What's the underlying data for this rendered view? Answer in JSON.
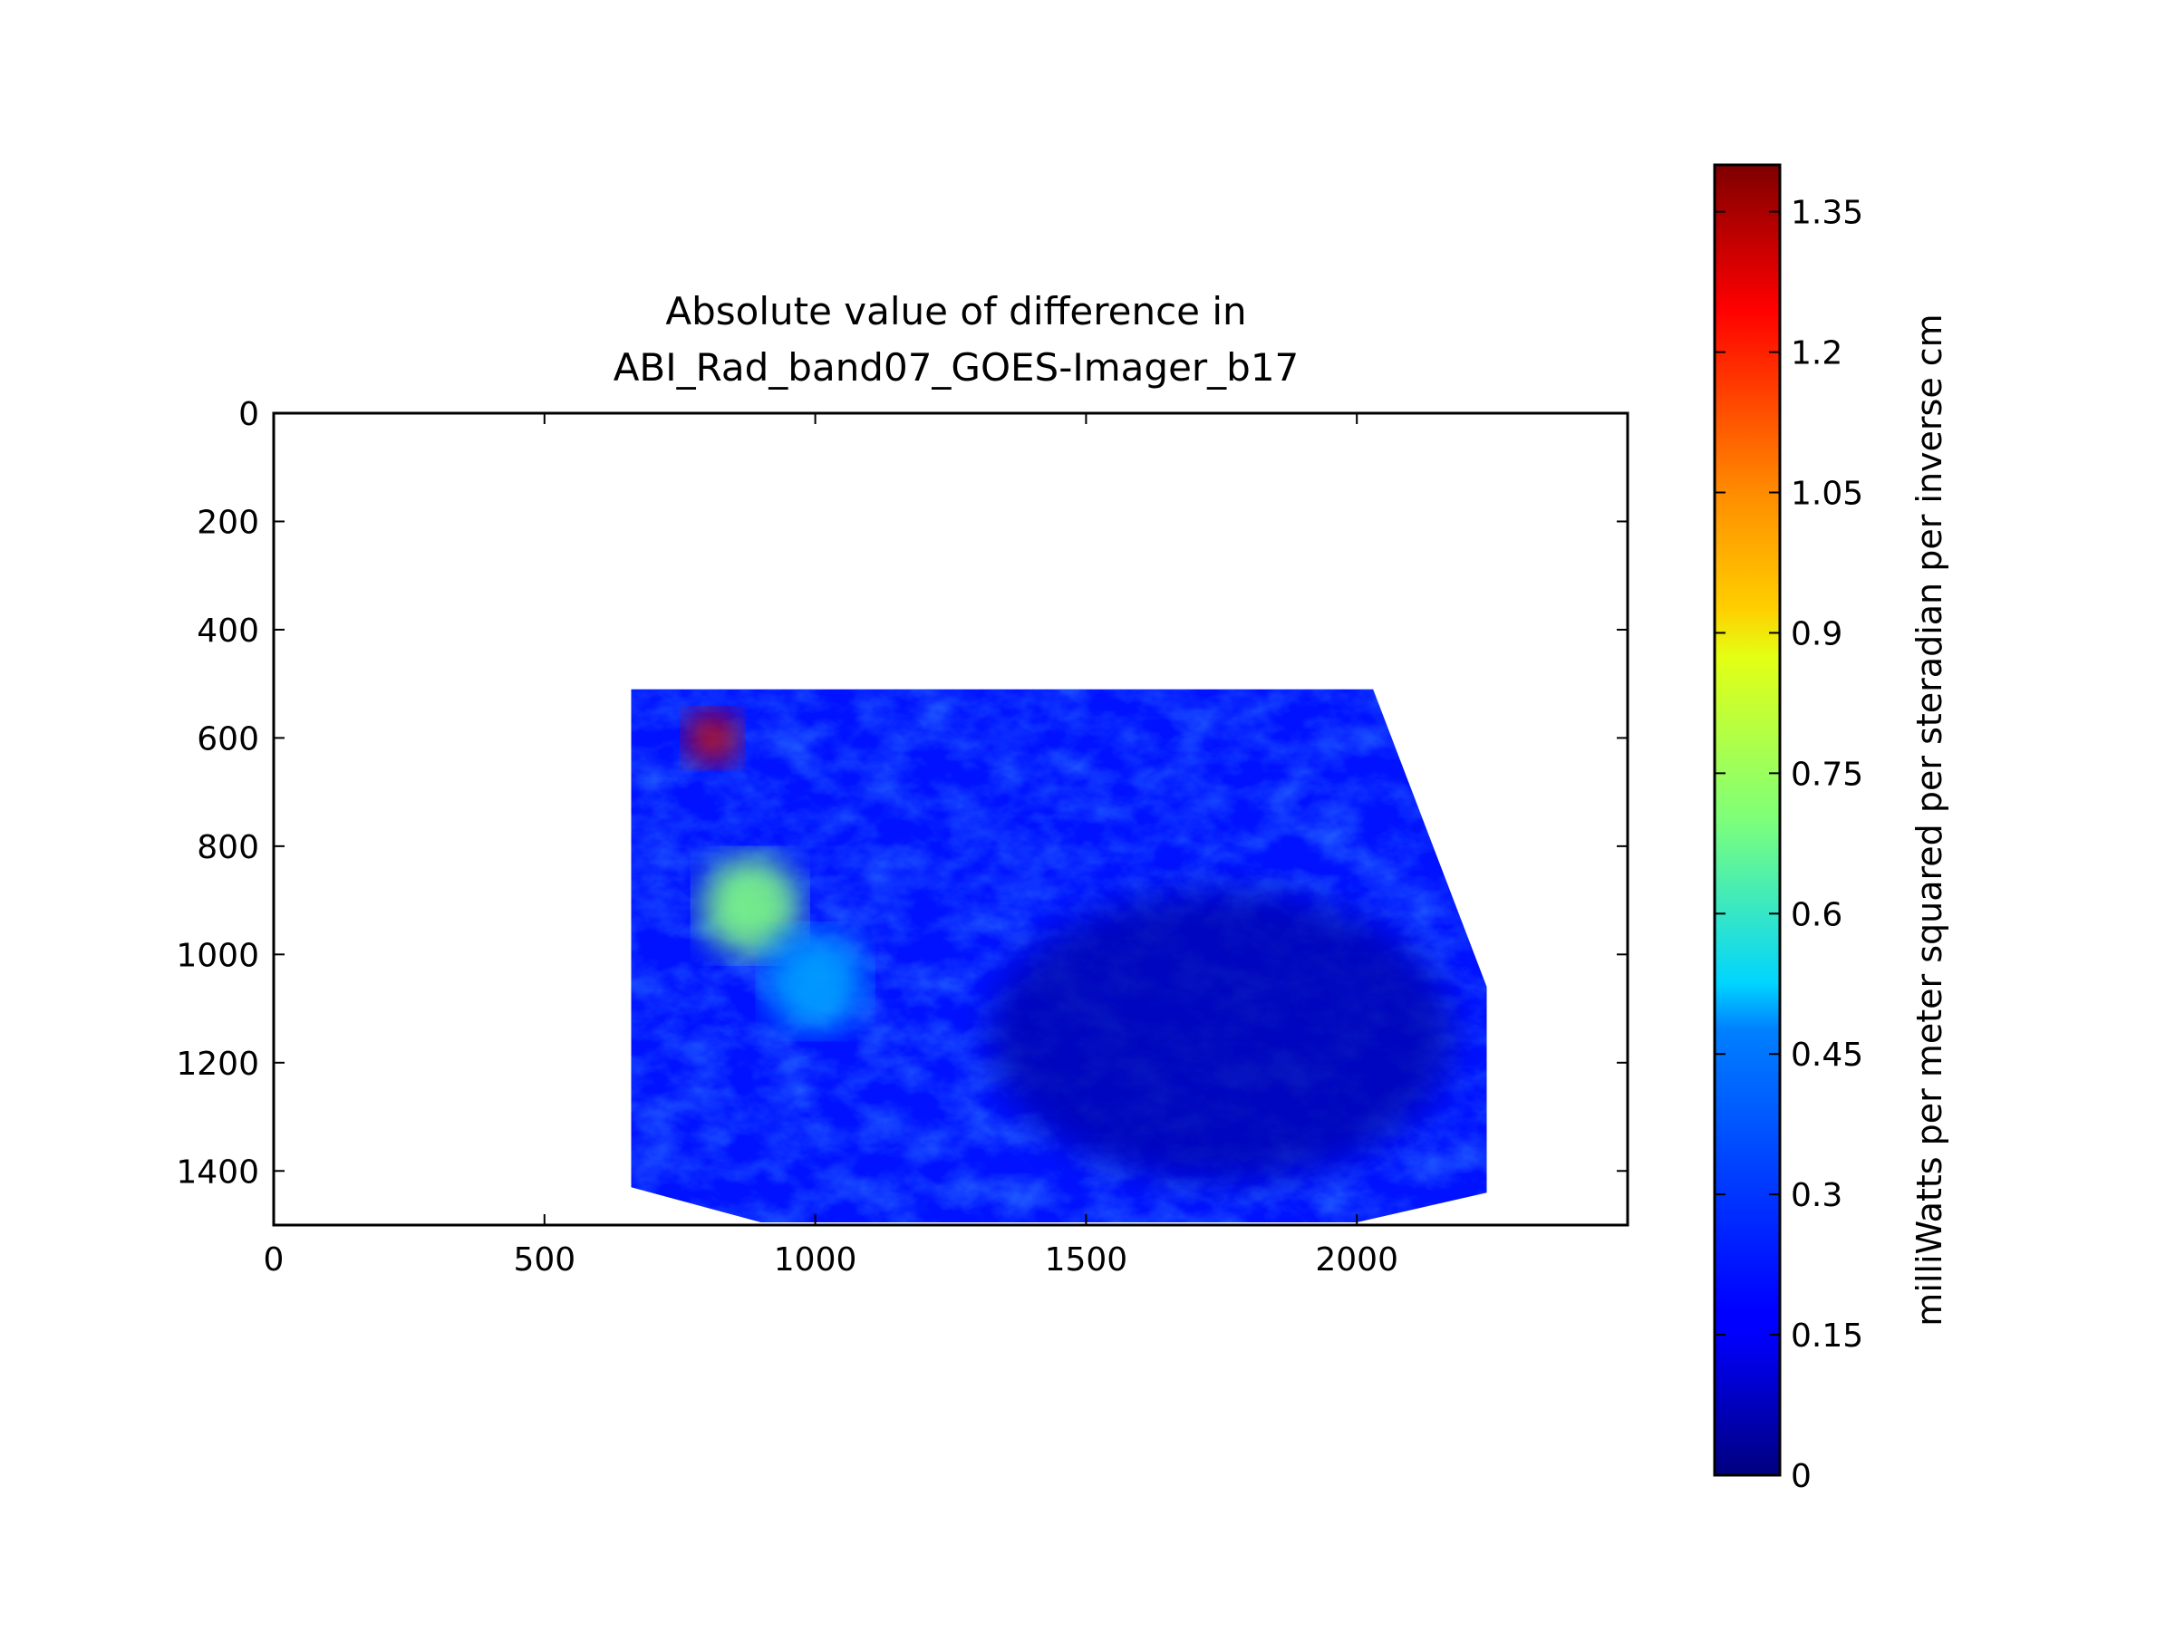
{
  "chart_data": {
    "type": "heatmap",
    "title_lines": [
      "Absolute value of difference in",
      "ABI_Rad_band07_GOES-Imager_b17"
    ],
    "xlabel": "",
    "ylabel": "",
    "xlim": [
      0,
      2500
    ],
    "ylim": [
      1500,
      0
    ],
    "xticks": [
      0,
      500,
      1000,
      1500,
      2000
    ],
    "yticks": [
      0,
      200,
      400,
      600,
      800,
      1000,
      1200,
      1400
    ],
    "grid": false,
    "data_region": {
      "outline": [
        [
          660,
          510
        ],
        [
          2030,
          510
        ],
        [
          2240,
          1060
        ],
        [
          2240,
          1440
        ],
        [
          2000,
          1495
        ],
        [
          900,
          1495
        ],
        [
          660,
          1430
        ]
      ],
      "value_range": [
        0,
        1.4
      ],
      "typical_value": 0.2,
      "regions": [
        {
          "name": "hot spots",
          "x": 810,
          "y": 600,
          "value": 1.3
        },
        {
          "name": "green patch",
          "x": 880,
          "y": 910,
          "value": 0.7
        },
        {
          "name": "bright cloud band",
          "x": 1000,
          "y": 1050,
          "value": 0.4
        },
        {
          "name": "dark swirl",
          "x": 1750,
          "y": 1150,
          "value": 0.05
        }
      ]
    },
    "colorbar": {
      "colormap": "jet",
      "min": 0,
      "max": 1.4,
      "ticks": [
        0,
        0.15,
        0.3,
        0.45,
        0.6,
        0.75,
        0.9,
        1.05,
        1.2,
        1.35
      ],
      "tick_labels": [
        "0",
        "0.15",
        "0.3",
        "0.45",
        "0.6",
        "0.75",
        "0.9",
        "1.05",
        "1.2",
        "1.35"
      ],
      "label": "milliWatts per meter squared per steradian per inverse cm"
    }
  }
}
